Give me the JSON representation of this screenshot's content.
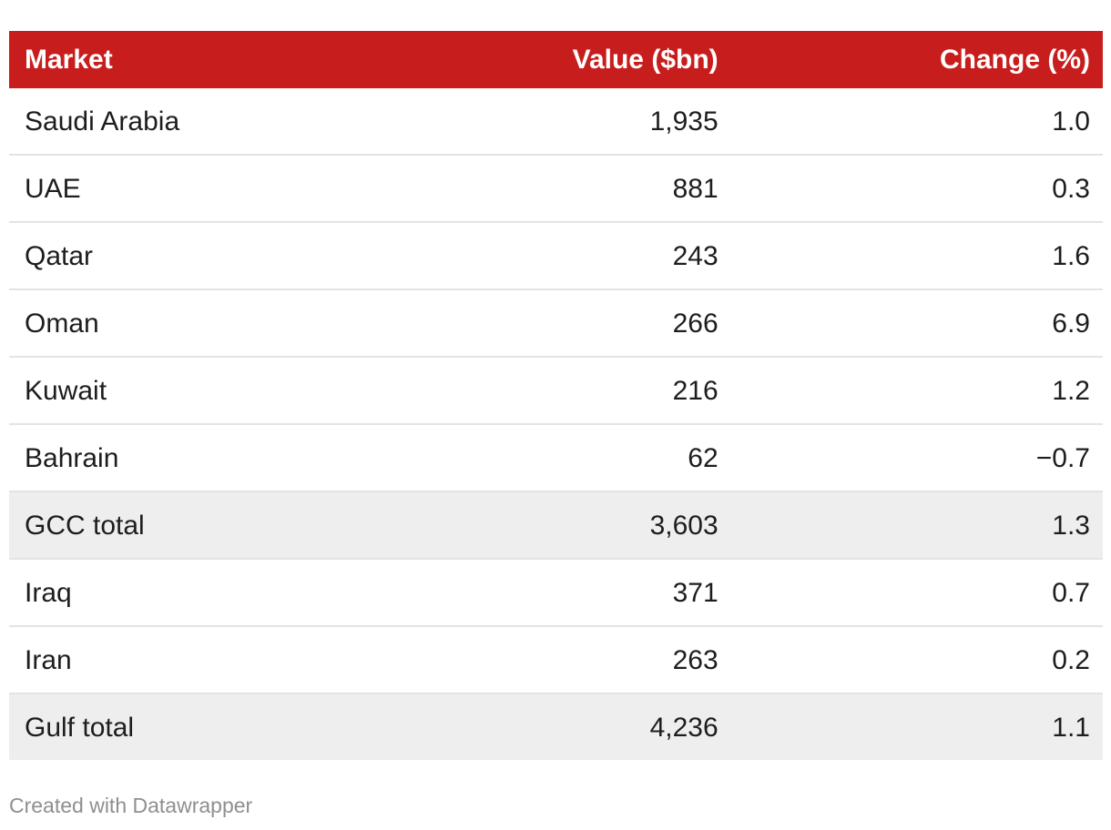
{
  "chart_data": {
    "type": "table",
    "columns": [
      "Market",
      "Value ($bn)",
      "Change (%)"
    ],
    "rows": [
      [
        "Saudi Arabia",
        1935,
        1.0
      ],
      [
        "UAE",
        881,
        0.3
      ],
      [
        "Qatar",
        243,
        1.6
      ],
      [
        "Oman",
        266,
        6.9
      ],
      [
        "Kuwait",
        216,
        1.2
      ],
      [
        "Bahrain",
        62,
        -0.7
      ],
      [
        "GCC total",
        3603,
        1.3
      ],
      [
        "Iraq",
        371,
        0.7
      ],
      [
        "Iran",
        263,
        0.2
      ],
      [
        "Gulf total",
        4236,
        1.1
      ]
    ],
    "total_row_indices": [
      6,
      9
    ]
  },
  "table": {
    "columns": {
      "market": "Market",
      "value": "Value ($bn)",
      "change": "Change (%)"
    },
    "rows": [
      {
        "market": "Saudi Arabia",
        "value": "1,935",
        "change": "1.0",
        "is_total": false
      },
      {
        "market": "UAE",
        "value": "881",
        "change": "0.3",
        "is_total": false
      },
      {
        "market": "Qatar",
        "value": "243",
        "change": "1.6",
        "is_total": false
      },
      {
        "market": "Oman",
        "value": "266",
        "change": "6.9",
        "is_total": false
      },
      {
        "market": "Kuwait",
        "value": "216",
        "change": "1.2",
        "is_total": false
      },
      {
        "market": "Bahrain",
        "value": "62",
        "change": "−0.7",
        "is_total": false
      },
      {
        "market": "GCC total",
        "value": "3,603",
        "change": "1.3",
        "is_total": true
      },
      {
        "market": "Iraq",
        "value": "371",
        "change": "0.7",
        "is_total": false
      },
      {
        "market": "Iran",
        "value": "263",
        "change": "0.2",
        "is_total": false
      },
      {
        "market": "Gulf total",
        "value": "4,236",
        "change": "1.1",
        "is_total": true
      }
    ]
  },
  "footer": {
    "credit": "Created with Datawrapper"
  },
  "colors": {
    "header_bg": "#c71e1d",
    "header_text": "#ffffff",
    "total_row_bg": "#eeeeee",
    "row_divider": "#e3e3e3",
    "body_text": "#1d1d1d",
    "credit_text": "#8f8f8f"
  }
}
